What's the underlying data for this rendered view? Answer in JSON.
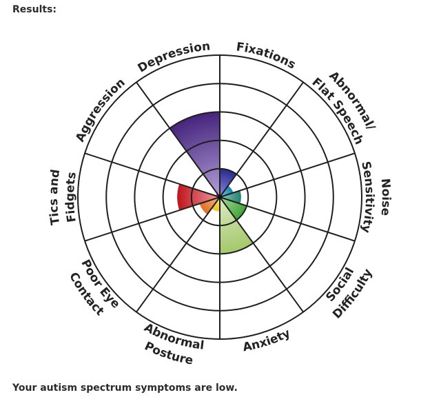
{
  "header": {
    "title": "Results:"
  },
  "summary": "Your autism spectrum symptoms are low.",
  "chart_data": {
    "type": "polar-area",
    "rings": 5,
    "max": 10,
    "categories": [
      {
        "lines": [
          "Fixations"
        ],
        "value": 2,
        "color": "#2a2a8c",
        "light": "#8c8ce0"
      },
      {
        "lines": [
          "Abnormal/",
          "Flat Speech"
        ],
        "value": 1,
        "color": "#1583a8",
        "light": "#7fd0e8"
      },
      {
        "lines": [
          "Noise",
          "Sensitivity"
        ],
        "value": 1.5,
        "color": "#25806f",
        "light": "#8cccbf"
      },
      {
        "lines": [
          "Social",
          "Difficulty"
        ],
        "value": 2,
        "color": "#42a33a",
        "light": "#a8dc9a"
      },
      {
        "lines": [
          "Anxiety"
        ],
        "value": 4,
        "color": "#a4c86a",
        "light": "#dcebc4"
      },
      {
        "lines": [
          "Abnormal",
          "Posture"
        ],
        "value": 1,
        "color": "#f0c21a",
        "light": "#fbe68a"
      },
      {
        "lines": [
          "Poor Eye",
          "Contact"
        ],
        "value": 1.5,
        "color": "#e46d24",
        "light": "#f6b888"
      },
      {
        "lines": [
          "Tics and",
          "Fidgets"
        ],
        "value": 3,
        "color": "#be161c",
        "light": "#f09aa0"
      },
      {
        "lines": [
          "Aggression"
        ],
        "value": 0.3,
        "color": "#b01f88",
        "light": "#e090cc"
      },
      {
        "lines": [
          "Depression"
        ],
        "value": 6,
        "color": "#45257d",
        "light": "#b4a0d8"
      }
    ]
  }
}
